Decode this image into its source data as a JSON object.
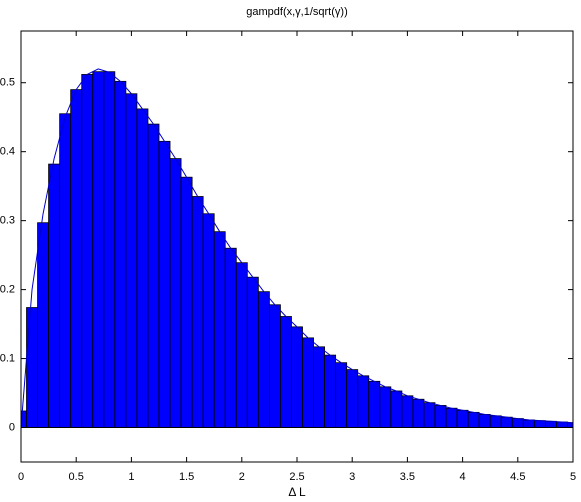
{
  "chart_data": {
    "type": "bar",
    "title": "gampdf(x,γ,1/sqrt(γ))",
    "xlabel": "Δ L",
    "x": [
      0,
      0.1,
      0.2,
      0.3,
      0.4,
      0.5,
      0.6,
      0.7,
      0.8,
      0.9,
      1.0,
      1.1,
      1.2,
      1.3,
      1.4,
      1.5,
      1.6,
      1.7,
      1.8,
      1.9,
      2.0,
      2.1,
      2.2,
      2.3,
      2.4,
      2.5,
      2.6,
      2.7,
      2.8,
      2.9,
      3.0,
      3.1,
      3.2,
      3.3,
      3.4,
      3.5,
      3.6,
      3.7,
      3.8,
      3.9,
      4.0,
      4.1,
      4.2,
      4.3,
      4.4,
      4.5,
      4.6,
      4.7,
      4.8,
      4.9,
      5.0
    ],
    "series": [
      {
        "type": "bar",
        "color": "#0000ff",
        "values": [
          0.024,
          0.174,
          0.297,
          0.382,
          0.455,
          0.49,
          0.512,
          0.516,
          0.516,
          0.502,
          0.484,
          0.462,
          0.44,
          0.415,
          0.39,
          0.363,
          0.335,
          0.31,
          0.284,
          0.26,
          0.239,
          0.218,
          0.197,
          0.178,
          0.161,
          0.146,
          0.13,
          0.117,
          0.105,
          0.094,
          0.084,
          0.075,
          0.067,
          0.059,
          0.053,
          0.046,
          0.041,
          0.036,
          0.032,
          0.028,
          0.025,
          0.022,
          0.019,
          0.017,
          0.015,
          0.013,
          0.011,
          0.01,
          0.009,
          0.008,
          0.007
        ]
      },
      {
        "type": "line",
        "color": "#0000cc",
        "values": [
          0,
          0.2,
          0.31,
          0.39,
          0.45,
          0.49,
          0.512,
          0.52,
          0.515,
          0.502,
          0.484,
          0.462,
          0.44,
          0.415,
          0.39,
          0.363,
          0.335,
          0.31,
          0.284,
          0.26,
          0.239,
          0.218,
          0.197,
          0.178,
          0.161,
          0.146,
          0.13,
          0.117,
          0.105,
          0.094,
          0.084,
          0.075,
          0.067,
          0.059,
          0.053,
          0.046,
          0.041,
          0.036,
          0.032,
          0.028,
          0.025,
          0.022,
          0.019,
          0.017,
          0.015,
          0.013,
          0.011,
          0.01,
          0.009,
          0.008,
          0.007
        ]
      }
    ],
    "xlim": [
      0,
      5
    ],
    "xticks": [
      0,
      0.5,
      1,
      1.5,
      2,
      2.5,
      3,
      3.5,
      4,
      4.5,
      5
    ],
    "ylim": [
      -0.05,
      0.575
    ],
    "yticks": [
      0,
      0.1,
      0.2,
      0.3,
      0.4,
      0.5
    ]
  }
}
